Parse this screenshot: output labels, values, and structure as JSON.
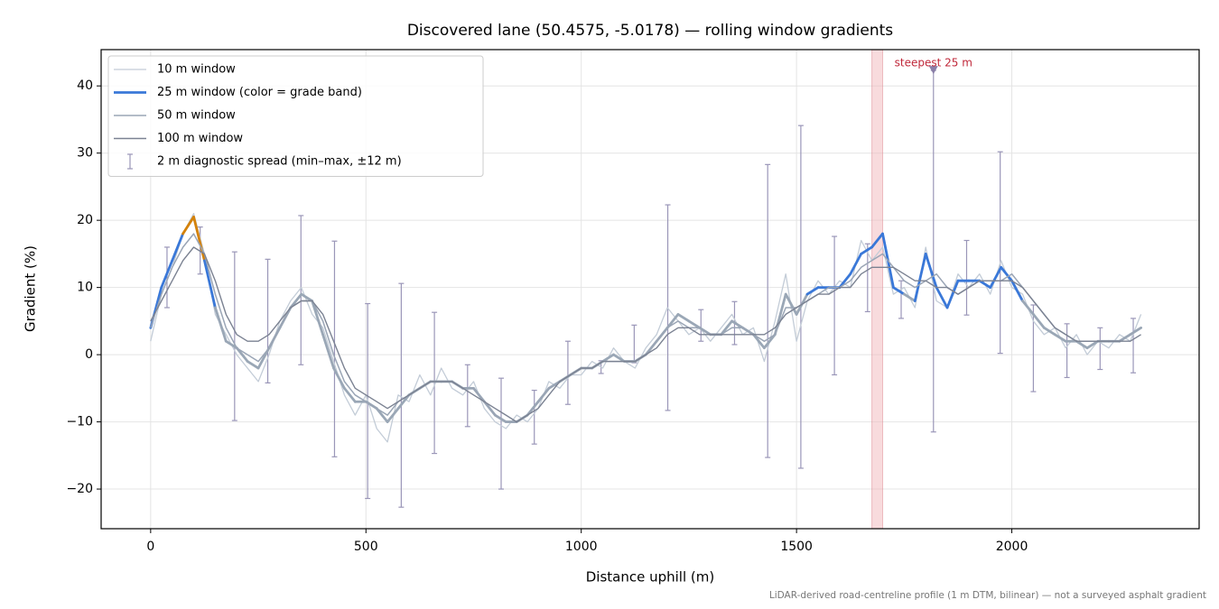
{
  "chart_data": {
    "type": "line",
    "title": "Discovered lane (50.4575, -5.0178) — rolling window gradients",
    "xlabel": "Distance uphill (m)",
    "ylabel": "Gradient (%)",
    "footnote": "LiDAR-derived road-centreline profile (1 m DTM, bilinear) — not a surveyed asphalt gradient",
    "xlim": [
      -115,
      2435
    ],
    "ylim": [
      -25.9,
      45.4
    ],
    "xticks": [
      0,
      500,
      1000,
      1500,
      2000
    ],
    "yticks": [
      {
        "value": -20,
        "label": "−20"
      },
      {
        "value": -10,
        "label": "−10"
      },
      0,
      10,
      20,
      30,
      40
    ],
    "grid": true,
    "legend": "upper left",
    "x": [
      0,
      25,
      50,
      75,
      100,
      125,
      150,
      175,
      200,
      225,
      250,
      275,
      300,
      325,
      350,
      375,
      400,
      425,
      450,
      475,
      500,
      525,
      550,
      575,
      600,
      625,
      650,
      675,
      700,
      725,
      750,
      775,
      800,
      825,
      850,
      875,
      900,
      925,
      950,
      975,
      1000,
      1025,
      1050,
      1075,
      1100,
      1125,
      1150,
      1175,
      1200,
      1225,
      1250,
      1275,
      1300,
      1325,
      1350,
      1375,
      1400,
      1425,
      1450,
      1475,
      1500,
      1525,
      1550,
      1575,
      1600,
      1625,
      1650,
      1675,
      1700,
      1725,
      1750,
      1775,
      1800,
      1825,
      1850,
      1875,
      1900,
      1925,
      1950,
      1975,
      2000,
      2025,
      2050,
      2075,
      2100,
      2125,
      2150,
      2175,
      2200,
      2225,
      2250,
      2275,
      2300
    ],
    "series": [
      {
        "name": "10 m window",
        "color": "#c3ccd7",
        "width": 1.3,
        "values": [
          2,
          9,
          13,
          18,
          21,
          15,
          6,
          3,
          0,
          -2,
          -4,
          0,
          5,
          8,
          10,
          6,
          4,
          -1,
          -6,
          -9,
          -6,
          -11,
          -13,
          -6,
          -7,
          -3,
          -6,
          -2,
          -5,
          -6,
          -4,
          -8,
          -10,
          -11,
          -9,
          -10,
          -8,
          -4,
          -5,
          -3,
          -3,
          -1,
          -2,
          1,
          -1,
          -2,
          1,
          3,
          7,
          5,
          3,
          4,
          2,
          4,
          6,
          3,
          4,
          -1,
          5,
          12,
          2,
          8,
          11,
          9,
          11,
          10,
          17,
          14,
          16,
          9,
          10,
          7,
          16,
          8,
          7,
          12,
          10,
          12,
          9,
          14,
          10,
          9,
          5,
          3,
          4,
          1,
          3,
          0,
          2,
          1,
          3,
          2,
          6
        ]
      },
      {
        "name": "25 m window (color = grade band)",
        "color": "#3a78d8",
        "base_color": "#9aa7b6",
        "width": 2.8,
        "grade_bands": [
          {
            "from": 10,
            "color": "#3a78d8"
          },
          {
            "from": 20,
            "color": "#d4820a"
          }
        ],
        "values": [
          4,
          10,
          14,
          18,
          20.5,
          14,
          7,
          2,
          1,
          -1,
          -2,
          1,
          4,
          7,
          9,
          8,
          3,
          -2,
          -5,
          -7,
          -7,
          -8,
          -10,
          -8,
          -6,
          -5,
          -4,
          -4,
          -4,
          -5,
          -5,
          -7,
          -9,
          -10,
          -10,
          -9,
          -7,
          -5,
          -4,
          -3,
          -2,
          -2,
          -1,
          0,
          -1,
          -1,
          0,
          2,
          4,
          6,
          5,
          4,
          3,
          3,
          5,
          4,
          3,
          1,
          3,
          9,
          6,
          9,
          10,
          10,
          10,
          12,
          15,
          16,
          18,
          10,
          9,
          8,
          15,
          10,
          7,
          11,
          11,
          11,
          10,
          13,
          11,
          8,
          6,
          4,
          3,
          2,
          2,
          1,
          2,
          2,
          2,
          3,
          4
        ]
      },
      {
        "name": "50 m window",
        "color": "#9aa5b5",
        "width": 1.5,
        "values": [
          4,
          9,
          13,
          16,
          18,
          15,
          9,
          4,
          1,
          0,
          -1,
          1,
          4,
          7,
          8,
          8,
          5,
          0,
          -4,
          -6,
          -7,
          -8,
          -9,
          -7,
          -6,
          -5,
          -4,
          -4,
          -4,
          -5,
          -5,
          -7,
          -9,
          -10,
          -10,
          -9,
          -7,
          -5,
          -4,
          -3,
          -2,
          -2,
          -1,
          -1,
          -1,
          -1,
          0,
          2,
          4,
          5,
          4,
          4,
          3,
          3,
          4,
          4,
          3,
          2,
          3,
          7,
          7,
          8,
          9,
          10,
          10,
          11,
          13,
          14,
          15,
          13,
          11,
          10,
          11,
          12,
          10,
          9,
          10,
          11,
          11,
          11,
          12,
          10,
          8,
          6,
          4,
          3,
          2,
          2,
          2,
          2,
          2,
          3,
          4
        ]
      },
      {
        "name": "100 m window",
        "color": "#7b8292",
        "width": 1.4,
        "values": [
          5,
          8,
          11,
          14,
          16,
          15,
          11,
          6,
          3,
          2,
          2,
          3,
          5,
          7,
          8,
          8,
          6,
          2,
          -2,
          -5,
          -6,
          -7,
          -8,
          -7,
          -6,
          -5,
          -4,
          -4,
          -4,
          -5,
          -6,
          -7,
          -8,
          -9,
          -10,
          -9,
          -8,
          -6,
          -4,
          -3,
          -2,
          -2,
          -1,
          -1,
          -1,
          -1,
          0,
          1,
          3,
          4,
          4,
          3,
          3,
          3,
          3,
          3,
          3,
          3,
          4,
          6,
          7,
          8,
          9,
          9,
          10,
          10,
          12,
          13,
          13,
          13,
          12,
          11,
          11,
          10,
          10,
          9,
          10,
          11,
          11,
          11,
          11,
          10,
          8,
          6,
          4,
          3,
          2,
          2,
          2,
          2,
          2,
          2,
          3
        ]
      }
    ],
    "error_bars": {
      "name": "2 m diagnostic spread (min–max, ±12 m)",
      "color": "#9a96b8",
      "x": [
        38,
        115,
        195,
        272,
        349,
        427,
        504,
        582,
        659,
        736,
        814,
        891,
        969,
        1046,
        1123,
        1201,
        1278,
        1356,
        1433,
        1510,
        1588,
        1665,
        1743,
        1818,
        1895,
        1973,
        2050,
        2128,
        2205,
        2282
      ],
      "low": [
        7,
        12,
        -9.8,
        -4.2,
        -1.5,
        -15.2,
        -21.4,
        -22.7,
        -14.7,
        -10.7,
        -20,
        -13.3,
        -7.4,
        -2.8,
        -1.2,
        -8.3,
        2,
        1.5,
        -15.3,
        -16.9,
        -3,
        6.4,
        5.4,
        -11.5,
        5.9,
        0.2,
        -5.5,
        -3.4,
        -2.2,
        -2.7
      ],
      "high": [
        16,
        19,
        15.3,
        14.2,
        20.7,
        16.9,
        7.6,
        10.6,
        6.3,
        -1.5,
        -3.5,
        -5.3,
        2,
        -0.9,
        4.4,
        22.3,
        6.7,
        7.9,
        28.3,
        34.1,
        17.6,
        16.5,
        11,
        42.3,
        17,
        30.2,
        7.4,
        4.6,
        4,
        5.4
      ]
    },
    "highlight": {
      "x": [
        1675,
        1700
      ],
      "color": "#f2b8bc"
    },
    "annotation": {
      "text": "steepest 25 m",
      "x": 1818,
      "y": 42.3,
      "color": "#c0283a",
      "marker_color": "#8a7fa8"
    }
  }
}
